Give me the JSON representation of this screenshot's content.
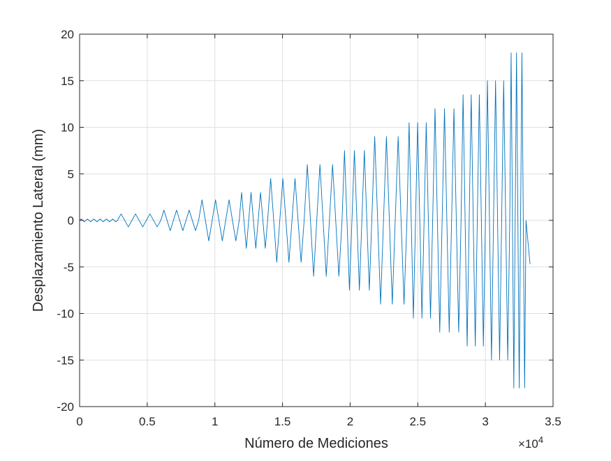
{
  "colors": {
    "background": "#ffffff",
    "line": "#0072bd",
    "grid": "#dfdfdf",
    "axis": "#262626"
  },
  "chart_data": {
    "type": "line",
    "title": "",
    "xlabel": "Número de Mediciones",
    "ylabel": "Desplazamiento Lateral (mm)",
    "x_exponent_label": "×10",
    "x_exponent_power": "4",
    "xlim": [
      0,
      3.5
    ],
    "ylim": [
      -20,
      20
    ],
    "x_ticks": [
      0,
      0.5,
      1,
      1.5,
      2,
      2.5,
      3,
      3.5
    ],
    "x_tick_labels": [
      "0",
      "0.5",
      "1",
      "1.5",
      "2",
      "2.5",
      "3",
      "3.5"
    ],
    "y_ticks": [
      -20,
      -15,
      -10,
      -5,
      0,
      5,
      10,
      15,
      20
    ],
    "y_tick_labels": [
      "-20",
      "-15",
      "-10",
      "-5",
      "0",
      "5",
      "10",
      "15",
      "20"
    ],
    "grid": true,
    "box": true,
    "series": [
      {
        "x_scale": "×10^4",
        "cycles": [
          {
            "amplitude": 0.15,
            "repeats": 6,
            "x_start": 0.0,
            "x_end": 0.28
          },
          {
            "amplitude": 0.7,
            "repeats": 3,
            "x_start": 0.28,
            "x_end": 0.6
          },
          {
            "amplitude": 1.1,
            "repeats": 3,
            "x_start": 0.6,
            "x_end": 0.88
          },
          {
            "amplitude": 2.2,
            "repeats": 3,
            "x_start": 0.88,
            "x_end": 1.18
          },
          {
            "amplitude": 3.0,
            "repeats": 3,
            "x_start": 1.18,
            "x_end": 1.39
          },
          {
            "amplitude": 4.5,
            "repeats": 3,
            "x_start": 1.39,
            "x_end": 1.66
          },
          {
            "amplitude": 6.0,
            "repeats": 3,
            "x_start": 1.66,
            "x_end": 1.94
          },
          {
            "amplitude": 7.5,
            "repeats": 3,
            "x_start": 1.94,
            "x_end": 2.16
          },
          {
            "amplitude": 9.0,
            "repeats": 3,
            "x_start": 2.16,
            "x_end": 2.42
          },
          {
            "amplitude": 10.5,
            "repeats": 3,
            "x_start": 2.42,
            "x_end": 2.61
          },
          {
            "amplitude": 12.0,
            "repeats": 3,
            "x_start": 2.61,
            "x_end": 2.82
          },
          {
            "amplitude": 13.5,
            "repeats": 3,
            "x_start": 2.82,
            "x_end": 3.0
          },
          {
            "amplitude": 15.0,
            "repeats": 3,
            "x_start": 3.0,
            "x_end": 3.18
          },
          {
            "amplitude": 18.0,
            "repeats": 3,
            "x_start": 3.18,
            "x_end": 3.3
          }
        ],
        "final_value": -4.7,
        "x_final": 3.33
      }
    ]
  }
}
